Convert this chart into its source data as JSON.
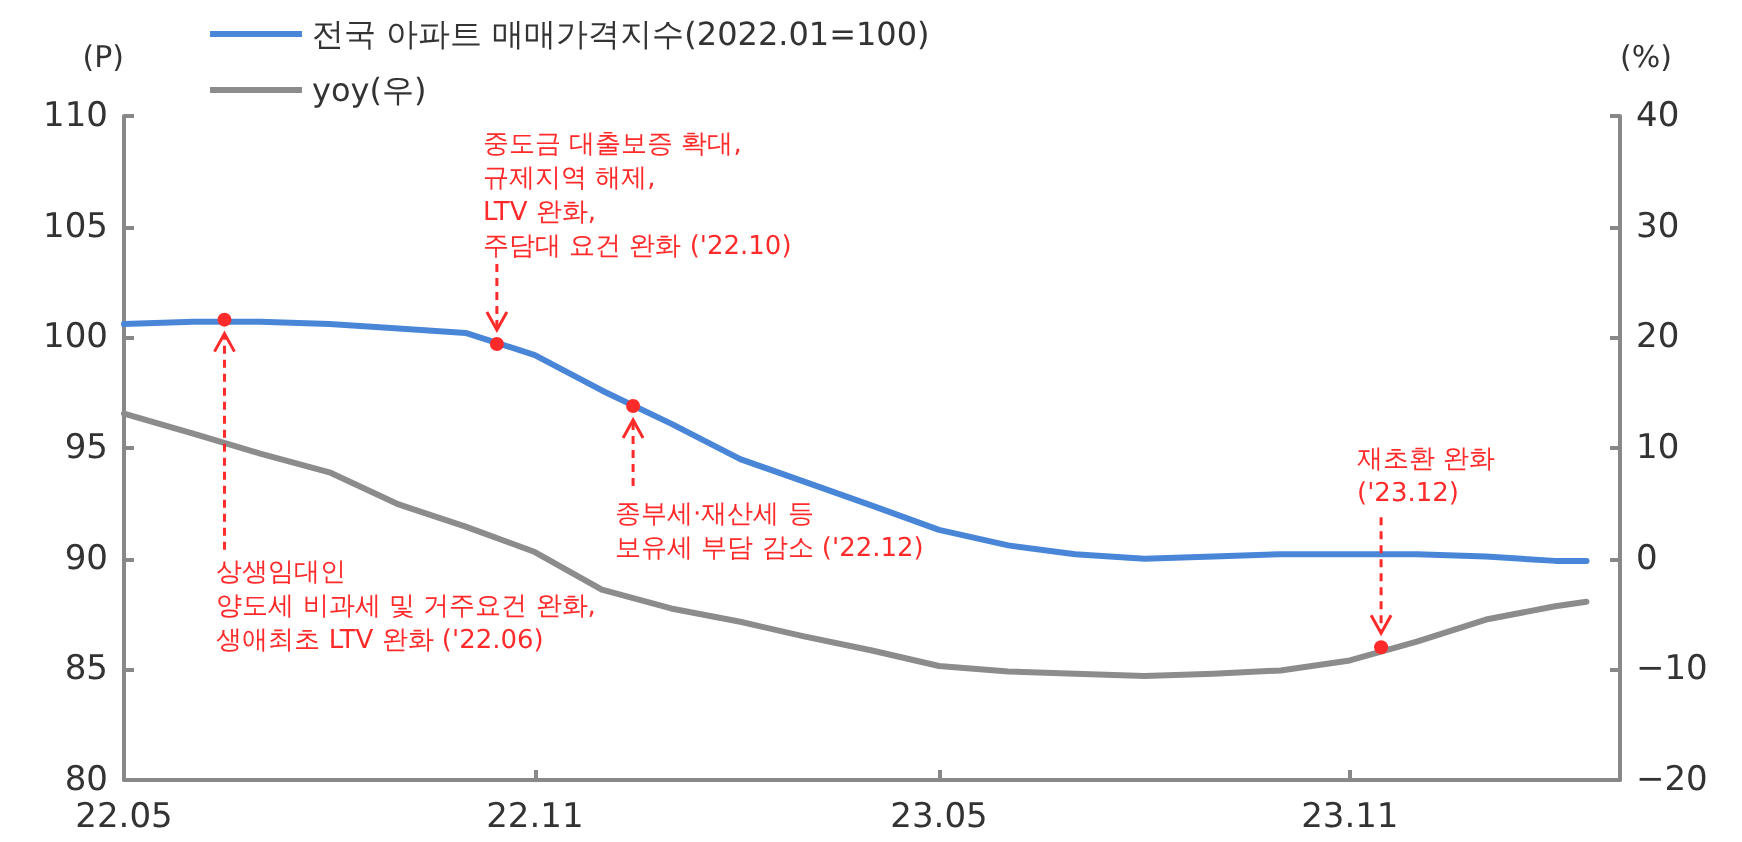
{
  "chart_data": {
    "type": "line",
    "ylabel": "(P)",
    "y2label": "(%)",
    "x": [
      "2022-05",
      "2022-06",
      "2022-07",
      "2022-08",
      "2022-09",
      "2022-10",
      "2022-11",
      "2022-12",
      "2023-01",
      "2023-02",
      "2023-03",
      "2023-04",
      "2023-05",
      "2023-06",
      "2023-07",
      "2023-08",
      "2023-09",
      "2023-10",
      "2023-11",
      "2023-12",
      "2024-01",
      "2024-02",
      "2024-02-15"
    ],
    "series": [
      {
        "name": "전국 아파트 매매가격지수(2022.01=100)",
        "color": "#4a86d8",
        "values": [
          100.6,
          100.7,
          100.7,
          100.6,
          100.4,
          100.2,
          99.2,
          97.6,
          96.1,
          94.5,
          93.5,
          92.4,
          91.3,
          90.6,
          90.2,
          90.0,
          90.1,
          90.2,
          90.2,
          90.2,
          90.1,
          89.9,
          89.9
        ]
      },
      {
        "name": "yoy(우)",
        "color": "#8c8c8c",
        "axis": "y2",
        "values": [
          13.1,
          11.3,
          9.5,
          7.8,
          4.9,
          2.9,
          0.6,
          -2.8,
          -4.5,
          -5.7,
          -7.0,
          -8.3,
          -9.7,
          -10.2,
          -10.4,
          -10.6,
          -10.4,
          -10.1,
          -9.2,
          -7.5,
          -5.5,
          -4.3,
          -3.9
        ]
      }
    ],
    "xlim": [
      "2022-05",
      "2024-03"
    ],
    "xticks": [
      {
        "value": "2022-05",
        "label": "22.05"
      },
      {
        "value": "2022-11",
        "label": "22.11"
      },
      {
        "value": "2023-05",
        "label": "23.05"
      },
      {
        "value": "2023-11",
        "label": "23.11"
      }
    ],
    "ylim": [
      80,
      110
    ],
    "yticks": [
      80,
      85,
      90,
      95,
      100,
      105,
      110
    ],
    "y2lim": [
      -20,
      40
    ],
    "y2ticks": [
      -20,
      -10,
      0,
      10,
      20,
      30,
      40
    ],
    "grid": false,
    "legend": "top left",
    "marker": "none",
    "line_style": "solid",
    "annotations": [
      {
        "text": "상생임대인\n양도세 비과세 및 거주요건 완화,\n생애최초 LTV 완화 ('22.06)",
        "x": "2022-06-15",
        "y": 100.8
      },
      {
        "text": "중도금 대출보증 확대,\n규제지역 해제,\nLTV 완화,\n주담대 요건 완화 ('22.10)",
        "x": "2022-10-15",
        "y": 99.7
      },
      {
        "text": "종부세·재산세 등\n보유세 부담 감소 ('22.12)",
        "x": "2022-12-15",
        "y": 96.9
      },
      {
        "text": "재초환 완화\n('23.12)",
        "x": "2023-11-15",
        "y": 86.0
      }
    ]
  }
}
